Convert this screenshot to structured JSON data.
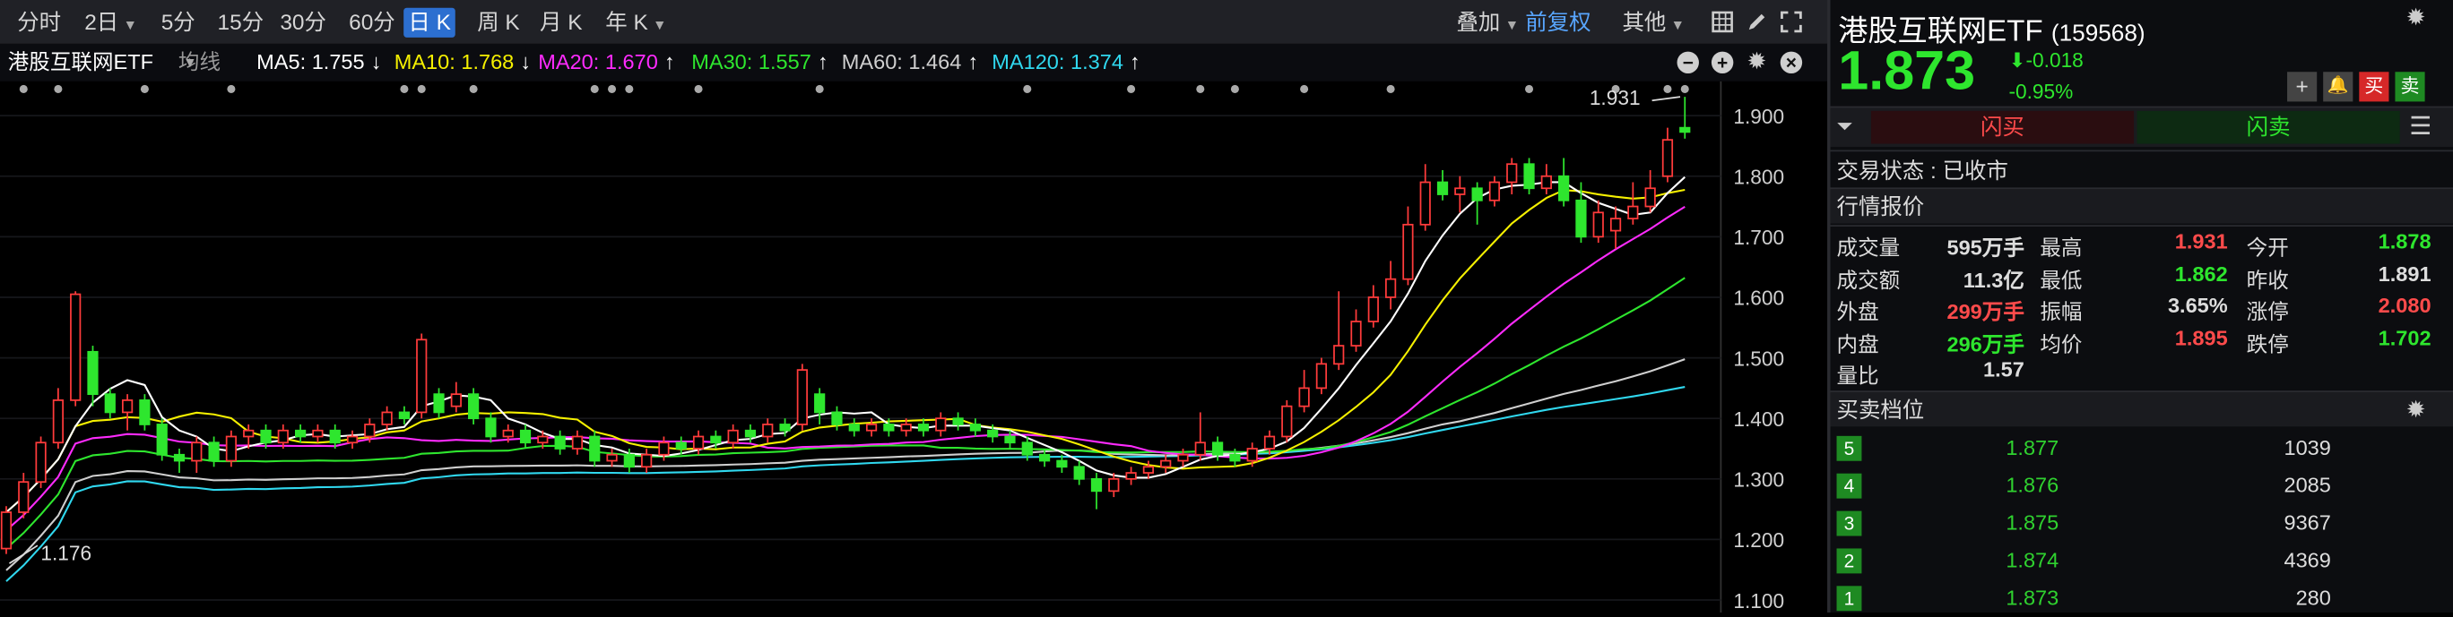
{
  "toolbar": {
    "timeframes": [
      {
        "label": "分时",
        "dropdown": false,
        "active": false
      },
      {
        "label": "2日",
        "dropdown": true,
        "active": false
      },
      {
        "label": "5分",
        "dropdown": false,
        "active": false
      },
      {
        "label": "15分",
        "dropdown": false,
        "active": false
      },
      {
        "label": "30分",
        "dropdown": false,
        "active": false
      },
      {
        "label": "60分",
        "dropdown": false,
        "active": false
      },
      {
        "label": "日 K",
        "dropdown": false,
        "active": true
      },
      {
        "label": "周 K",
        "dropdown": false,
        "active": false
      },
      {
        "label": "月 K",
        "dropdown": false,
        "active": false
      },
      {
        "label": "年 K",
        "dropdown": true,
        "active": false
      }
    ],
    "overlay_label": "叠加",
    "adjust_label": "前复权",
    "other_label": "其他",
    "icons": [
      "grid-layout-icon",
      "draw-pen-icon",
      "fullscreen-icon"
    ]
  },
  "ma_bar": {
    "name": "港股互联网ETF",
    "indicator": "均线",
    "items": [
      {
        "label": "MA5: 1.755",
        "arrow": "↓",
        "color": "#ffffff"
      },
      {
        "label": "MA10: 1.768",
        "arrow": "↓",
        "color": "#f5f000"
      },
      {
        "label": "MA20: 1.670",
        "arrow": "↑",
        "color": "#ff2bff"
      },
      {
        "label": "MA30: 1.557",
        "arrow": "↑",
        "color": "#2ee62e"
      },
      {
        "label": "MA60: 1.464",
        "arrow": "↑",
        "color": "#cfcfcf"
      },
      {
        "label": "MA120: 1.374",
        "arrow": "↑",
        "color": "#30d8ef"
      }
    ]
  },
  "chart": {
    "high_label": "1.931",
    "low_label": "1.176",
    "y_ticks": [
      "1.900",
      "1.800",
      "1.700",
      "1.600",
      "1.500",
      "1.400",
      "1.300",
      "1.200",
      "1.100"
    ]
  },
  "chart_data": {
    "type": "candlestick",
    "y_axis": [
      1.1,
      1.9
    ],
    "ma_colors": {
      "MA5": "#ffffff",
      "MA10": "#f5f000",
      "MA20": "#ff2bff",
      "MA30": "#2ee62e",
      "MA60": "#cfcfcf",
      "MA120": "#30d8ef"
    },
    "up_color": "#ff3b3b",
    "down_color": "#2ee62e",
    "candles": [
      [
        1.185,
        1.245,
        1.176,
        1.255
      ],
      [
        1.245,
        1.295,
        1.235,
        1.31
      ],
      [
        1.295,
        1.36,
        1.285,
        1.37
      ],
      [
        1.36,
        1.43,
        1.35,
        1.45
      ],
      [
        1.43,
        1.605,
        1.42,
        1.61
      ],
      [
        1.51,
        1.44,
        1.42,
        1.52
      ],
      [
        1.44,
        1.41,
        1.4,
        1.45
      ],
      [
        1.41,
        1.43,
        1.38,
        1.44
      ],
      [
        1.43,
        1.39,
        1.38,
        1.44
      ],
      [
        1.39,
        1.34,
        1.33,
        1.4
      ],
      [
        1.34,
        1.33,
        1.31,
        1.35
      ],
      [
        1.33,
        1.36,
        1.31,
        1.37
      ],
      [
        1.36,
        1.33,
        1.32,
        1.37
      ],
      [
        1.33,
        1.37,
        1.32,
        1.38
      ],
      [
        1.37,
        1.38,
        1.35,
        1.39
      ],
      [
        1.38,
        1.36,
        1.35,
        1.39
      ],
      [
        1.36,
        1.38,
        1.35,
        1.39
      ],
      [
        1.38,
        1.37,
        1.36,
        1.39
      ],
      [
        1.37,
        1.38,
        1.36,
        1.39
      ],
      [
        1.38,
        1.36,
        1.35,
        1.39
      ],
      [
        1.36,
        1.37,
        1.35,
        1.38
      ],
      [
        1.37,
        1.39,
        1.36,
        1.4
      ],
      [
        1.39,
        1.41,
        1.38,
        1.42
      ],
      [
        1.41,
        1.4,
        1.39,
        1.42
      ],
      [
        1.41,
        1.53,
        1.4,
        1.54
      ],
      [
        1.44,
        1.41,
        1.4,
        1.45
      ],
      [
        1.42,
        1.44,
        1.41,
        1.46
      ],
      [
        1.44,
        1.4,
        1.39,
        1.45
      ],
      [
        1.4,
        1.37,
        1.36,
        1.41
      ],
      [
        1.37,
        1.38,
        1.36,
        1.39
      ],
      [
        1.38,
        1.36,
        1.35,
        1.39
      ],
      [
        1.36,
        1.37,
        1.35,
        1.38
      ],
      [
        1.37,
        1.35,
        1.34,
        1.38
      ],
      [
        1.35,
        1.37,
        1.34,
        1.38
      ],
      [
        1.37,
        1.33,
        1.32,
        1.38
      ],
      [
        1.33,
        1.34,
        1.32,
        1.35
      ],
      [
        1.34,
        1.32,
        1.31,
        1.35
      ],
      [
        1.32,
        1.34,
        1.31,
        1.35
      ],
      [
        1.34,
        1.36,
        1.33,
        1.37
      ],
      [
        1.36,
        1.35,
        1.34,
        1.37
      ],
      [
        1.35,
        1.37,
        1.34,
        1.38
      ],
      [
        1.37,
        1.36,
        1.35,
        1.38
      ],
      [
        1.36,
        1.38,
        1.35,
        1.39
      ],
      [
        1.38,
        1.37,
        1.36,
        1.39
      ],
      [
        1.37,
        1.39,
        1.36,
        1.4
      ],
      [
        1.39,
        1.38,
        1.37,
        1.4
      ],
      [
        1.39,
        1.48,
        1.38,
        1.49
      ],
      [
        1.44,
        1.41,
        1.39,
        1.45
      ],
      [
        1.41,
        1.39,
        1.38,
        1.42
      ],
      [
        1.39,
        1.38,
        1.37,
        1.4
      ],
      [
        1.38,
        1.39,
        1.37,
        1.4
      ],
      [
        1.39,
        1.38,
        1.37,
        1.4
      ],
      [
        1.38,
        1.39,
        1.37,
        1.4
      ],
      [
        1.39,
        1.38,
        1.37,
        1.4
      ],
      [
        1.38,
        1.4,
        1.37,
        1.41
      ],
      [
        1.4,
        1.39,
        1.38,
        1.41
      ],
      [
        1.39,
        1.38,
        1.37,
        1.4
      ],
      [
        1.38,
        1.37,
        1.36,
        1.39
      ],
      [
        1.37,
        1.36,
        1.35,
        1.38
      ],
      [
        1.36,
        1.34,
        1.33,
        1.37
      ],
      [
        1.34,
        1.33,
        1.32,
        1.35
      ],
      [
        1.33,
        1.32,
        1.31,
        1.34
      ],
      [
        1.32,
        1.3,
        1.29,
        1.33
      ],
      [
        1.3,
        1.28,
        1.25,
        1.31
      ],
      [
        1.28,
        1.3,
        1.27,
        1.31
      ],
      [
        1.3,
        1.31,
        1.29,
        1.32
      ],
      [
        1.31,
        1.32,
        1.3,
        1.33
      ],
      [
        1.32,
        1.33,
        1.31,
        1.34
      ],
      [
        1.33,
        1.34,
        1.32,
        1.35
      ],
      [
        1.34,
        1.36,
        1.33,
        1.41
      ],
      [
        1.36,
        1.34,
        1.33,
        1.37
      ],
      [
        1.34,
        1.33,
        1.32,
        1.35
      ],
      [
        1.33,
        1.35,
        1.32,
        1.36
      ],
      [
        1.35,
        1.37,
        1.34,
        1.38
      ],
      [
        1.37,
        1.42,
        1.36,
        1.43
      ],
      [
        1.42,
        1.45,
        1.41,
        1.48
      ],
      [
        1.45,
        1.49,
        1.44,
        1.5
      ],
      [
        1.49,
        1.52,
        1.48,
        1.61
      ],
      [
        1.52,
        1.56,
        1.51,
        1.58
      ],
      [
        1.56,
        1.6,
        1.55,
        1.62
      ],
      [
        1.6,
        1.63,
        1.58,
        1.66
      ],
      [
        1.63,
        1.72,
        1.62,
        1.75
      ],
      [
        1.72,
        1.79,
        1.71,
        1.82
      ],
      [
        1.79,
        1.77,
        1.76,
        1.81
      ],
      [
        1.77,
        1.78,
        1.74,
        1.8
      ],
      [
        1.78,
        1.76,
        1.72,
        1.79
      ],
      [
        1.76,
        1.79,
        1.75,
        1.8
      ],
      [
        1.79,
        1.82,
        1.77,
        1.83
      ],
      [
        1.82,
        1.78,
        1.77,
        1.83
      ],
      [
        1.78,
        1.8,
        1.77,
        1.82
      ],
      [
        1.8,
        1.76,
        1.75,
        1.83
      ],
      [
        1.76,
        1.7,
        1.69,
        1.79
      ],
      [
        1.7,
        1.74,
        1.69,
        1.76
      ],
      [
        1.71,
        1.73,
        1.68,
        1.75
      ],
      [
        1.73,
        1.75,
        1.72,
        1.79
      ],
      [
        1.75,
        1.78,
        1.74,
        1.81
      ],
      [
        1.8,
        1.86,
        1.79,
        1.88
      ],
      [
        1.88,
        1.873,
        1.862,
        1.931
      ]
    ]
  },
  "quote": {
    "name": "港股互联网ETF",
    "code": "(159568)",
    "price": "1.873",
    "change": "-0.018",
    "change_pct": "-0.95%",
    "buy_btn": "买",
    "sell_btn": "卖",
    "flash_buy": "闪买",
    "flash_sell": "闪卖",
    "status": "交易状态 : 已收市",
    "section_quote": "行情报价",
    "stats": [
      [
        "成交量",
        "595万手",
        "最高",
        "1.931",
        "今开",
        "1.878"
      ],
      [
        "成交额",
        "11.3亿",
        "最低",
        "1.862",
        "昨收",
        "1.891"
      ],
      [
        "外盘",
        "299万手",
        "振幅",
        "3.65%",
        "涨停",
        "2.080"
      ],
      [
        "内盘",
        "296万手",
        "均价",
        "1.895",
        "跌停",
        "1.702"
      ],
      [
        "量比",
        "1.57",
        "",
        "",
        "",
        ""
      ]
    ],
    "section_book": "买卖档位",
    "bids": [
      [
        "5",
        "1.877",
        "1039"
      ],
      [
        "4",
        "1.876",
        "2085"
      ],
      [
        "3",
        "1.875",
        "9367"
      ],
      [
        "2",
        "1.874",
        "4369"
      ],
      [
        "1",
        "1.873",
        "280"
      ]
    ]
  }
}
